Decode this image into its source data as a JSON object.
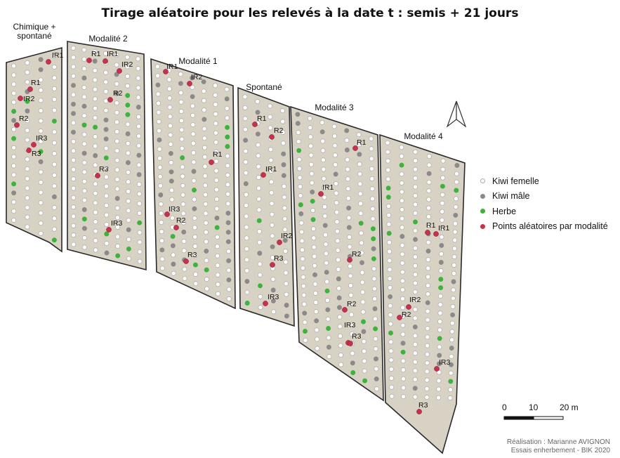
{
  "title": "Tirage aléatoire pour les relevés à la date t : semis + 21 jours",
  "parcels": [
    {
      "name": "Chimique +\nspontané"
    },
    {
      "name": "Modalité 2"
    },
    {
      "name": "Modalité 1"
    },
    {
      "name": "Spontané"
    },
    {
      "name": "Modalité 3"
    },
    {
      "name": "Modalité 4"
    }
  ],
  "legend": [
    {
      "label": "Kiwi femelle",
      "color": "#ffffff",
      "stroke": "#aaaaaa"
    },
    {
      "label": "Kiwi mâle",
      "color": "#8a8a8a",
      "stroke": "#8a8a8a"
    },
    {
      "label": "Herbe",
      "color": "#3cb33c",
      "stroke": "#3cb33c"
    },
    {
      "label": "Points aléatoires par modalité",
      "color": "#c9304e",
      "stroke": "#c9304e"
    }
  ],
  "random_points": [
    {
      "label": "IR1"
    },
    {
      "label": "R1"
    },
    {
      "label": "IR2"
    },
    {
      "label": "R2"
    },
    {
      "label": "IR3"
    },
    {
      "label": "R3"
    },
    {
      "label": "R1"
    },
    {
      "label": "IR1"
    },
    {
      "label": "IR2"
    },
    {
      "label": "R2"
    },
    {
      "label": "R3"
    },
    {
      "label": "IR3"
    },
    {
      "label": "IR1"
    },
    {
      "label": "IR2"
    },
    {
      "label": "R1"
    },
    {
      "label": "IR3"
    },
    {
      "label": "R2"
    },
    {
      "label": "R3"
    },
    {
      "label": "R1"
    },
    {
      "label": "R2"
    },
    {
      "label": "IR1"
    },
    {
      "label": "IR2"
    },
    {
      "label": "R3"
    },
    {
      "label": "IR3"
    },
    {
      "label": "R1"
    },
    {
      "label": "IR1"
    },
    {
      "label": "R2"
    },
    {
      "label": "R2"
    },
    {
      "label": "IR3"
    },
    {
      "label": "R3"
    },
    {
      "label": "R1"
    },
    {
      "label": "IR1"
    },
    {
      "label": "IR2"
    },
    {
      "label": "R2"
    },
    {
      "label": "IR3"
    },
    {
      "label": "R3"
    }
  ],
  "scale_bar": {
    "labels": [
      "0",
      "10",
      "20 m"
    ]
  },
  "north_arrow": "north-arrow-icon",
  "credits": [
    "Réalisation : Marianne AVIGNON",
    "Essais enherbement - BIK 2020"
  ],
  "colors": {
    "parcel_fill": "#d8d2c4",
    "parcel_stroke": "#2a2a2a",
    "female": "#ffffff",
    "male": "#8a8a8a",
    "grass": "#3cb33c",
    "random": "#c9304e"
  }
}
